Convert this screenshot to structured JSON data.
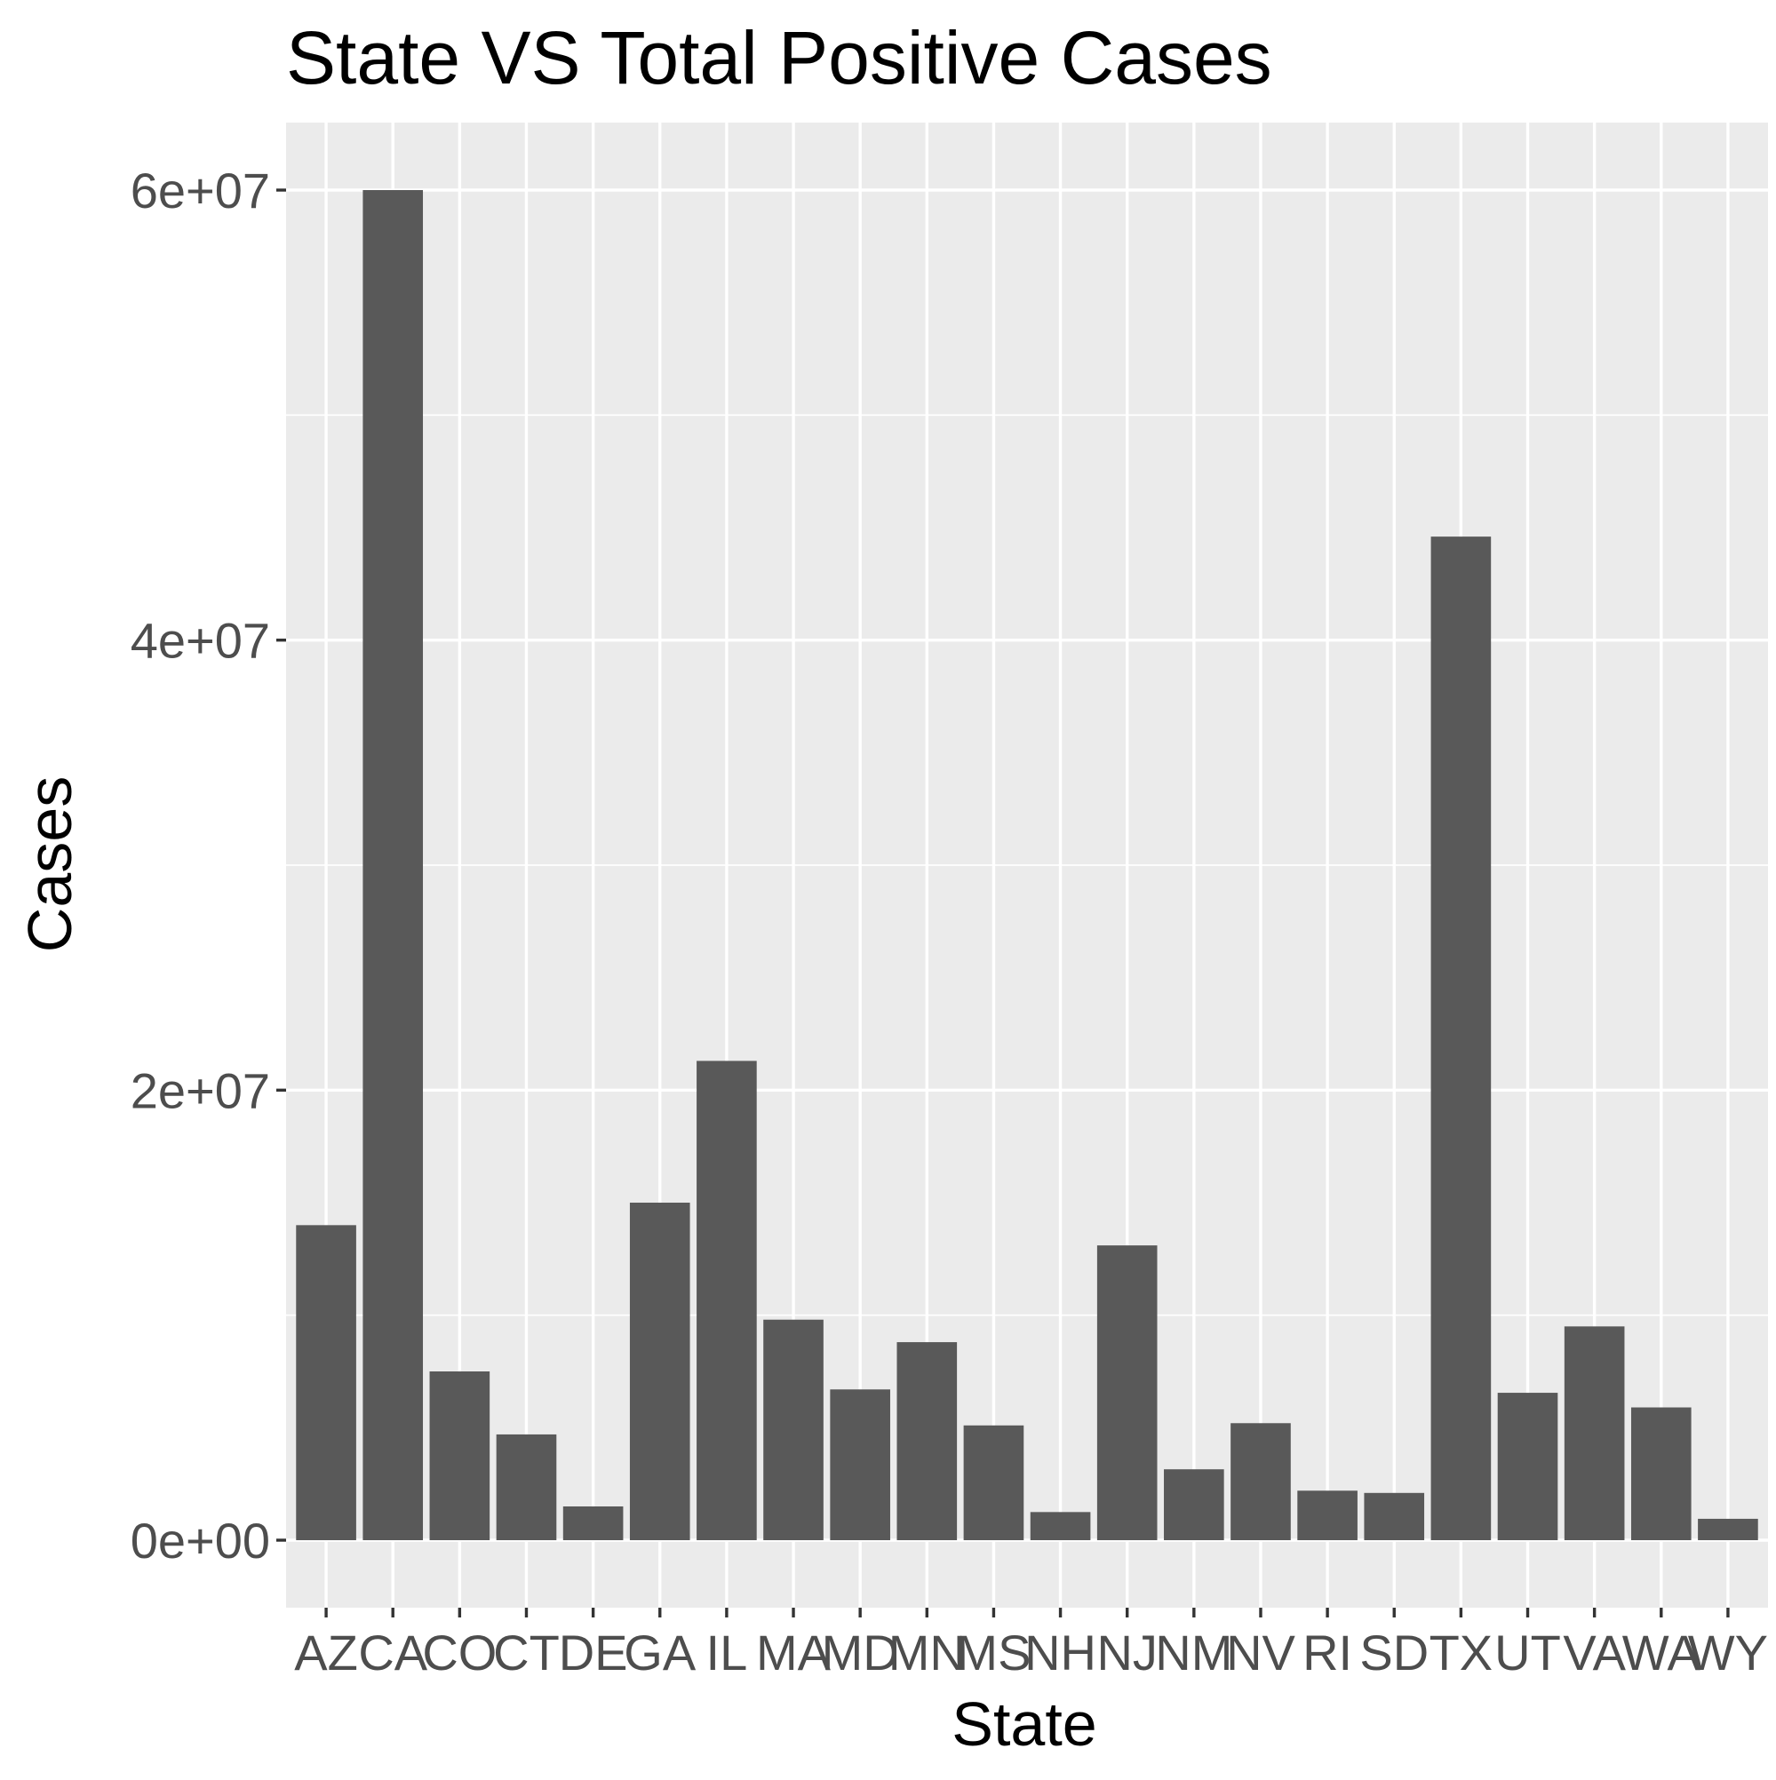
{
  "chart_data": {
    "type": "bar",
    "title": "State VS Total Positive Cases",
    "xlabel": "State",
    "ylabel": "Cases",
    "categories": [
      "AZ",
      "CA",
      "CO",
      "CT",
      "DE",
      "GA",
      "IL",
      "MA",
      "MD",
      "MN",
      "MS",
      "NH",
      "NJ",
      "NM",
      "NV",
      "RI",
      "SD",
      "TX",
      "UT",
      "VA",
      "WA",
      "WY"
    ],
    "values": [
      14000000,
      60000000,
      7500000,
      4700000,
      1500000,
      15000000,
      21300000,
      9800000,
      6700000,
      8800000,
      5100000,
      1250000,
      13100000,
      3150000,
      5200000,
      2200000,
      2100000,
      44600000,
      6550000,
      9500000,
      5900000,
      950000
    ],
    "yticks": [
      0,
      20000000,
      40000000,
      60000000
    ],
    "ytick_labels": [
      "0e+00",
      "2e+07",
      "4e+07",
      "6e+07"
    ],
    "ylim": [
      -3000000,
      63000000
    ],
    "grid": true,
    "bar_color": "#595959",
    "panel_color": "#ebebeb"
  }
}
